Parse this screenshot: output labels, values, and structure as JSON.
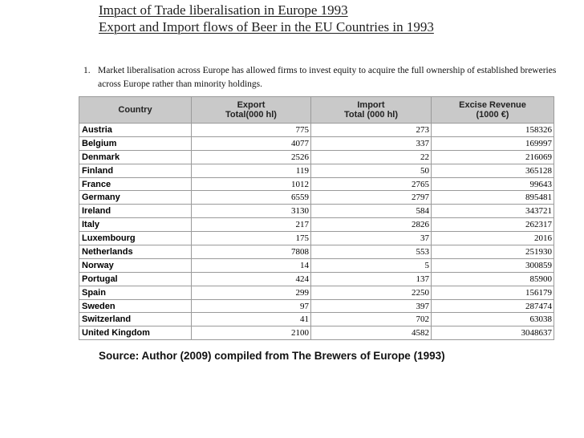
{
  "title": {
    "line1": "Impact of Trade liberalisation in Europe 1993",
    "line2": "Export and Import flows of Beer in the EU Countries in 1993"
  },
  "bullet": {
    "number": "1.",
    "text": "Market liberalisation across  Europe has  allowed firms to invest equity to acquire the full ownership of established breweries across Europe rather than minority holdings."
  },
  "table": {
    "headers": {
      "country": "Country",
      "export_line1": "Export",
      "export_line2": "Total(000 hl)",
      "import_line1": "Import",
      "import_line2": "Total (000 hl)",
      "excise_line1": "Excise Revenue",
      "excise_line2": "(1000 €)"
    },
    "rows": [
      {
        "country": "Austria",
        "export": "775",
        "import": "273",
        "excise": "158326"
      },
      {
        "country": "Belgium",
        "export": "4077",
        "import": "337",
        "excise": "169997"
      },
      {
        "country": "Denmark",
        "export": "2526",
        "import": "22",
        "excise": "216069"
      },
      {
        "country": "Finland",
        "export": "119",
        "import": "50",
        "excise": "365128"
      },
      {
        "country": "France",
        "export": "1012",
        "import": "2765",
        "excise": "99643"
      },
      {
        "country": "Germany",
        "export": "6559",
        "import": "2797",
        "excise": "895481"
      },
      {
        "country": "Ireland",
        "export": "3130",
        "import": "584",
        "excise": "343721"
      },
      {
        "country": "Italy",
        "export": "217",
        "import": "2826",
        "excise": "262317"
      },
      {
        "country": "Luxembourg",
        "export": "175",
        "import": "37",
        "excise": "2016"
      },
      {
        "country": "Netherlands",
        "export": "7808",
        "import": "553",
        "excise": "251930"
      },
      {
        "country": "Norway",
        "export": "14",
        "import": "5",
        "excise": "300859"
      },
      {
        "country": "Portugal",
        "export": "424",
        "import": "137",
        "excise": "85900"
      },
      {
        "country": "Spain",
        "export": "299",
        "import": "2250",
        "excise": "156179"
      },
      {
        "country": "Sweden",
        "export": "97",
        "import": "397",
        "excise": "287474"
      },
      {
        "country": "Switzerland",
        "export": "41",
        "import": "702",
        "excise": "63038"
      },
      {
        "country": "United Kingdom",
        "export": "2100",
        "import": "4582",
        "excise": "3048637"
      }
    ]
  },
  "source": "Source: Author (2009) compiled from The Brewers of Europe (1993)"
}
